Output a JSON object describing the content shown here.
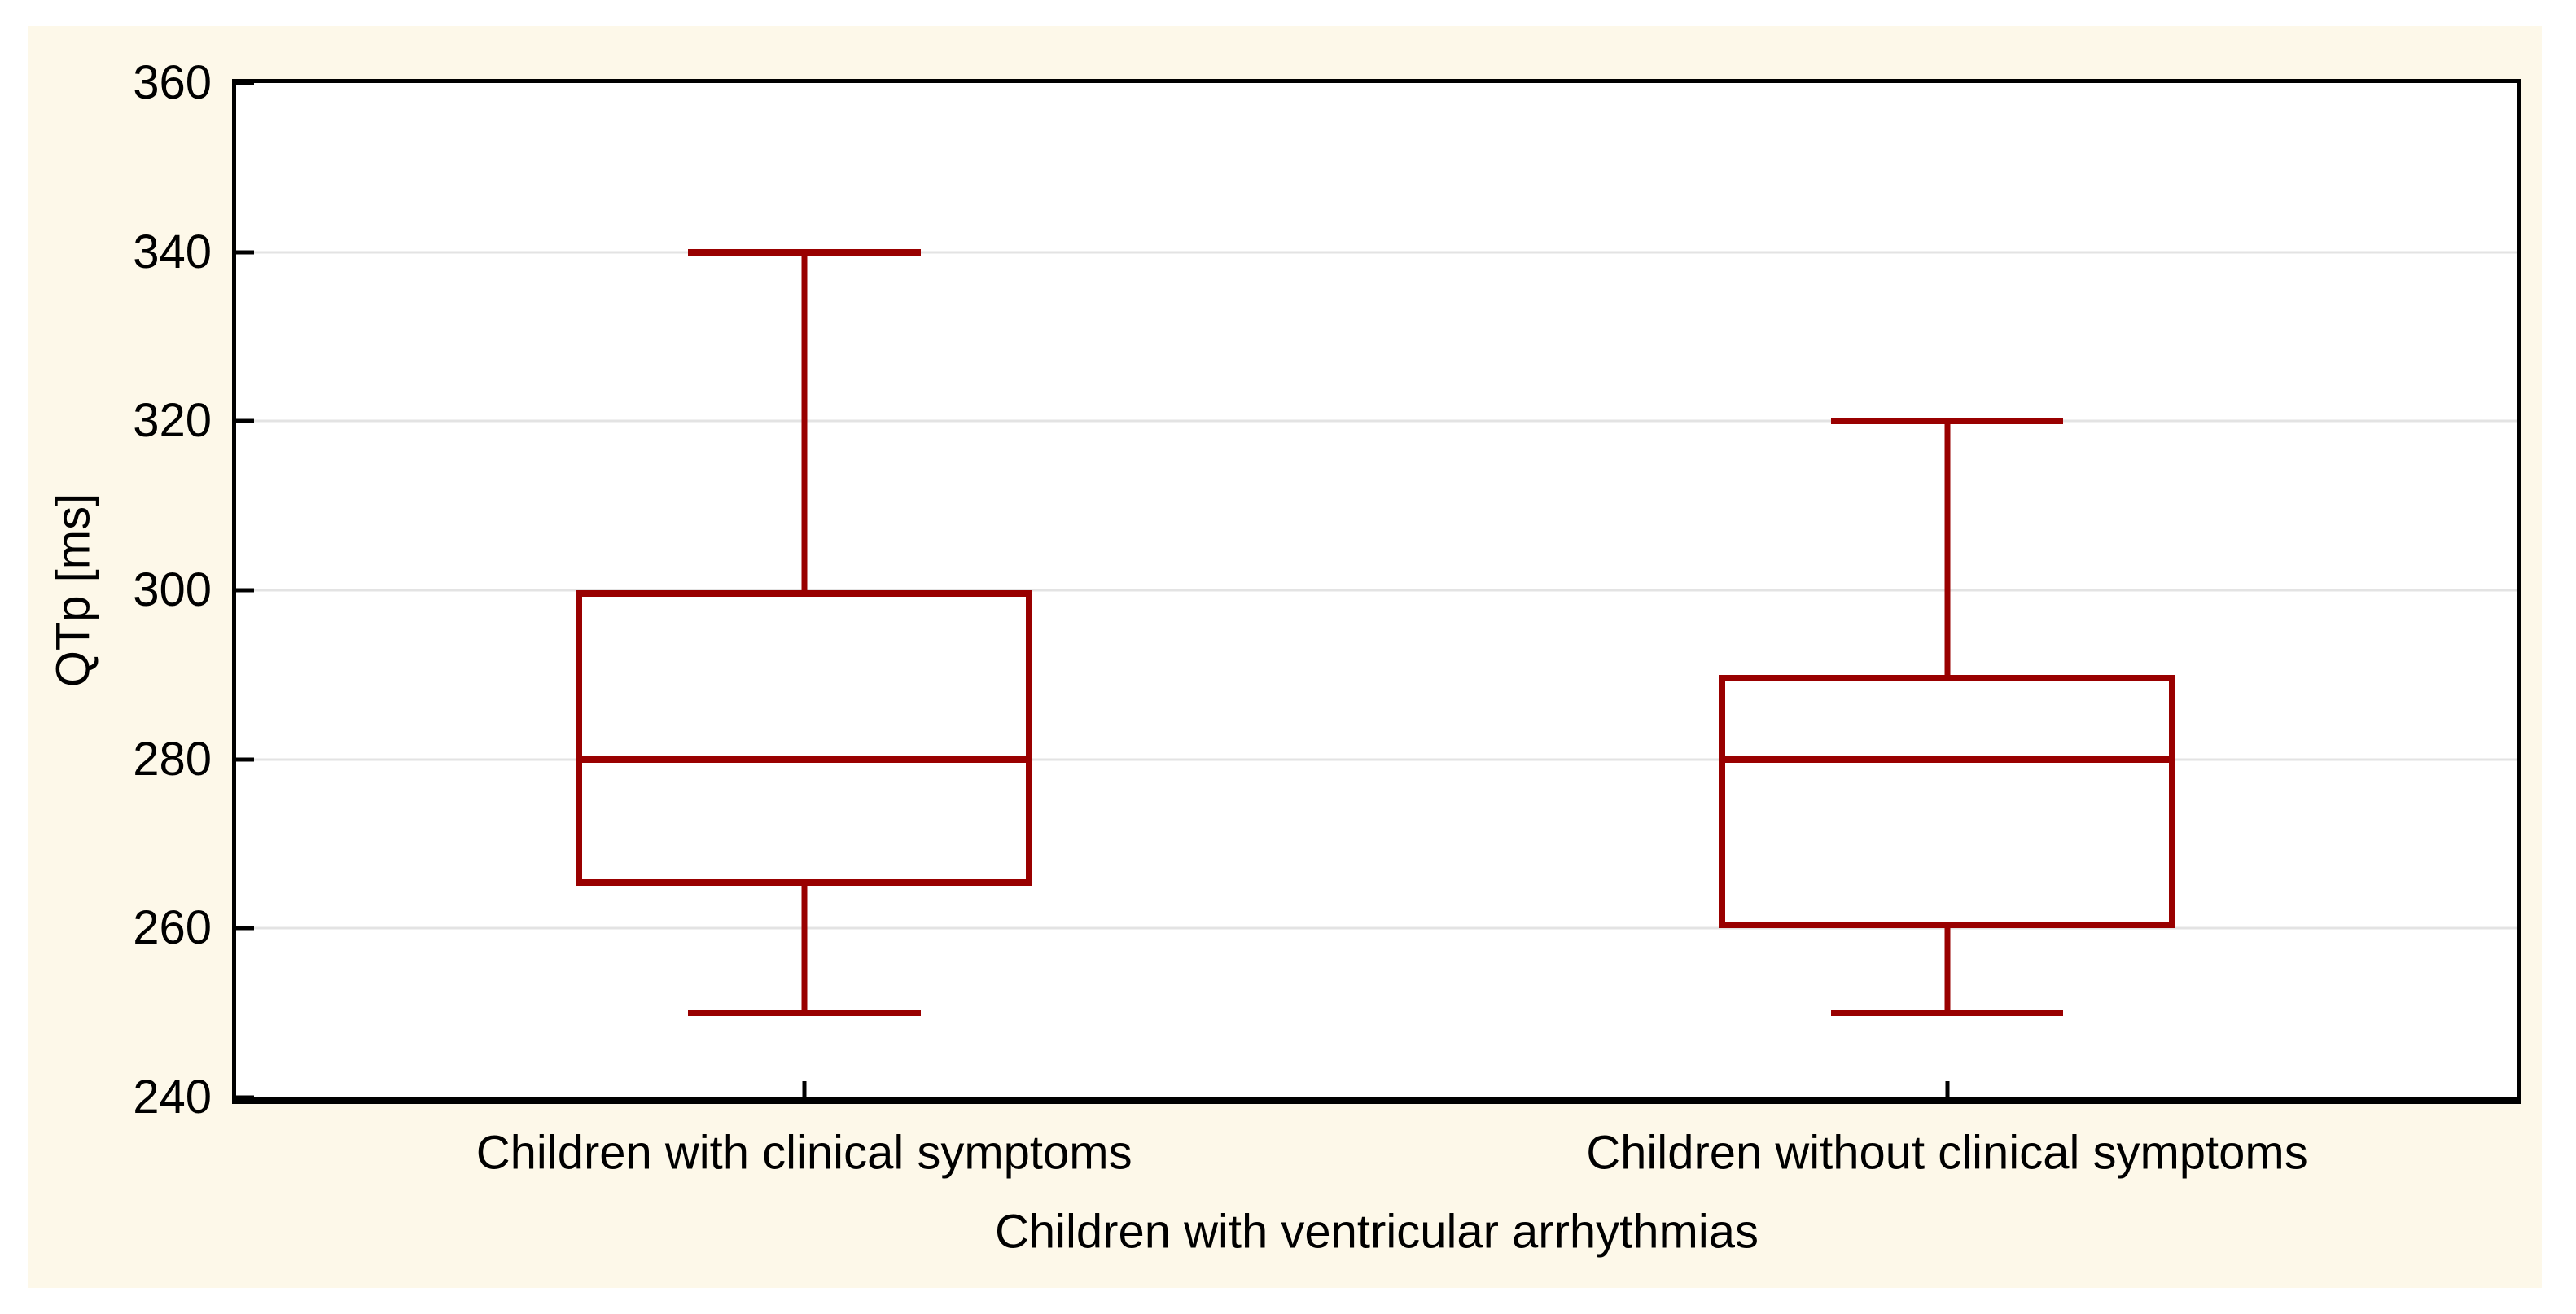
{
  "chart_data": {
    "type": "box",
    "title": "",
    "xlabel": "Children with ventricular arrhythmias",
    "ylabel": "QTp [ms]",
    "ylim": [
      240,
      360
    ],
    "yticks": [
      360,
      340,
      320,
      300,
      280,
      260,
      240
    ],
    "grid": "horizontal gridlines at interior ticks (340, 320, 300, 280, 260)",
    "legend_position": "none",
    "categories": [
      "Children with clinical symptoms",
      "Children without clinical symptoms"
    ],
    "series": [
      {
        "name": "Children with clinical symptoms",
        "whisker_low": 250,
        "q1": 265,
        "median": 280,
        "q3": 300,
        "whisker_high": 340
      },
      {
        "name": "Children without clinical symptoms",
        "whisker_low": 250,
        "q1": 260,
        "median": 280,
        "q3": 290,
        "whisker_high": 320
      }
    ],
    "colors": {
      "box_outline": "#990000",
      "gridline": "#E3E3E3",
      "axis": "#000000",
      "panel_background": "#FDF8E9",
      "plot_background": "#FFFFFF",
      "page_background": "#FFFFFF",
      "text": "#000000"
    },
    "layout": {
      "centers_pct": [
        24.9,
        75
      ],
      "box_width_pct": 20,
      "cap_width_pct": 10.2
    }
  }
}
